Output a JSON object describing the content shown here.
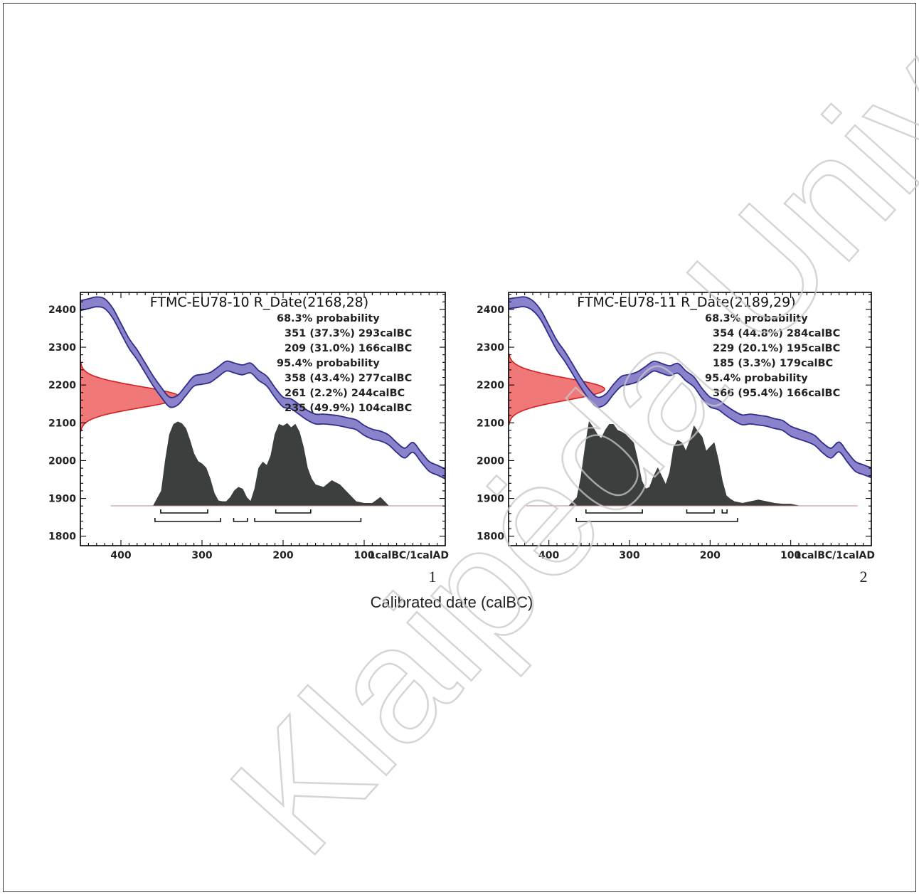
{
  "figure": {
    "xlabel": "Calibrated date (calBC)",
    "watermark": "Klaipėda University",
    "colors": {
      "curve_fill": "#8b82cc",
      "curve_stroke": "#2f2e8a",
      "radiocarbon_fill": "#f07878",
      "radiocarbon_stroke": "#d22020",
      "posterior_fill": "#3b3f3d",
      "axis": "#000000"
    }
  },
  "chart_data": [
    {
      "type": "area",
      "panel_label": "1",
      "title": "FTMC-EU78-10 R_Date(2168,28)",
      "annotations": [
        "68.3% probability",
        "351 (37.3%) 293calBC",
        "209 (31.0%) 166calBC",
        "95.4% probability",
        "358 (43.4%) 277calBC",
        "261 (2.2%) 244calBC",
        "235 (49.9%) 104calBC"
      ],
      "xlim": [
        450,
        0
      ],
      "ylim": [
        1775,
        2445
      ],
      "x_ticks": [
        400,
        300,
        200,
        100
      ],
      "x_end_label": "1calBC/1calAD",
      "y_ticks": [
        1800,
        1900,
        2000,
        2100,
        2200,
        2300,
        2400
      ],
      "radiocarbon": {
        "mean": 2168,
        "sigma": 28
      },
      "calibration_curve": {
        "x": [
          450,
          440,
          430,
          420,
          410,
          400,
          390,
          380,
          370,
          360,
          350,
          340,
          330,
          320,
          310,
          300,
          290,
          280,
          270,
          260,
          250,
          240,
          230,
          220,
          210,
          200,
          190,
          180,
          170,
          160,
          150,
          140,
          130,
          120,
          110,
          100,
          90,
          80,
          70,
          60,
          50,
          40,
          30,
          20,
          10,
          0
        ],
        "y": [
          2410,
          2415,
          2420,
          2415,
          2390,
          2350,
          2310,
          2280,
          2245,
          2210,
          2180,
          2155,
          2160,
          2185,
          2210,
          2215,
          2220,
          2235,
          2250,
          2245,
          2240,
          2245,
          2225,
          2210,
          2180,
          2155,
          2150,
          2135,
          2120,
          2110,
          2110,
          2108,
          2105,
          2100,
          2095,
          2080,
          2070,
          2065,
          2055,
          2035,
          2020,
          2035,
          2010,
          1985,
          1975,
          1965
        ]
      },
      "posterior": {
        "x": [
          360,
          350,
          345,
          340,
          335,
          330,
          325,
          320,
          315,
          310,
          305,
          300,
          295,
          290,
          285,
          280,
          275,
          270,
          265,
          260,
          255,
          250,
          245,
          240,
          235,
          230,
          225,
          220,
          215,
          210,
          205,
          200,
          195,
          190,
          185,
          180,
          175,
          170,
          165,
          160,
          150,
          140,
          130,
          120,
          110,
          100,
          90,
          80,
          70,
          60,
          50
        ],
        "y": [
          0,
          0.18,
          0.55,
          0.85,
          0.97,
          1.0,
          0.98,
          0.92,
          0.78,
          0.62,
          0.53,
          0.5,
          0.45,
          0.32,
          0.15,
          0.06,
          0.05,
          0.05,
          0.1,
          0.18,
          0.22,
          0.2,
          0.1,
          0.05,
          0.2,
          0.45,
          0.52,
          0.48,
          0.6,
          0.85,
          0.97,
          0.95,
          0.98,
          0.93,
          0.97,
          0.88,
          0.7,
          0.45,
          0.32,
          0.25,
          0.22,
          0.3,
          0.25,
          0.15,
          0.05,
          0.03,
          0.03,
          0.1,
          0.0,
          0.0,
          0
        ]
      },
      "ranges_68": [
        [
          351,
          293
        ],
        [
          209,
          166
        ]
      ],
      "ranges_95": [
        [
          358,
          277
        ],
        [
          261,
          244
        ],
        [
          235,
          104
        ]
      ]
    },
    {
      "type": "area",
      "panel_label": "2",
      "title": "FTMC-EU78-11 R_Date(2189,29)",
      "annotations": [
        "68.3% probability",
        "354 (44.8%) 284calBC",
        "229 (20.1%) 195calBC",
        "185 (3.3%) 179calBC",
        "95.4% probability",
        "366 (95.4%) 166calBC"
      ],
      "xlim": [
        450,
        0
      ],
      "ylim": [
        1775,
        2445
      ],
      "x_ticks": [
        400,
        300,
        200,
        100
      ],
      "x_end_label": "1calBC/1calAD",
      "y_ticks": [
        1800,
        1900,
        2000,
        2100,
        2200,
        2300,
        2400
      ],
      "radiocarbon": {
        "mean": 2189,
        "sigma": 29
      },
      "calibration_curve": {
        "x": [
          450,
          440,
          430,
          420,
          410,
          400,
          390,
          380,
          370,
          360,
          350,
          340,
          330,
          320,
          310,
          300,
          290,
          280,
          270,
          260,
          250,
          240,
          230,
          220,
          210,
          200,
          190,
          180,
          170,
          160,
          150,
          140,
          130,
          120,
          110,
          100,
          90,
          80,
          70,
          60,
          50,
          40,
          30,
          20,
          10,
          0
        ],
        "y": [
          2415,
          2418,
          2420,
          2410,
          2385,
          2345,
          2305,
          2275,
          2240,
          2205,
          2175,
          2155,
          2162,
          2188,
          2210,
          2215,
          2222,
          2236,
          2250,
          2244,
          2238,
          2244,
          2224,
          2208,
          2178,
          2155,
          2148,
          2132,
          2118,
          2108,
          2110,
          2107,
          2104,
          2098,
          2093,
          2078,
          2070,
          2063,
          2053,
          2033,
          2020,
          2036,
          2010,
          1985,
          1976,
          1968
        ]
      },
      "posterior": {
        "x": [
          375,
          365,
          360,
          355,
          350,
          345,
          340,
          335,
          330,
          325,
          320,
          315,
          310,
          305,
          300,
          295,
          290,
          285,
          280,
          275,
          270,
          265,
          260,
          255,
          250,
          245,
          240,
          235,
          230,
          225,
          220,
          215,
          210,
          205,
          200,
          195,
          190,
          185,
          180,
          175,
          170,
          165,
          160,
          150,
          140,
          130,
          120,
          110,
          100,
          90,
          80,
          70
        ],
        "y": [
          0,
          0.1,
          0.35,
          0.7,
          1.0,
          0.93,
          0.85,
          0.8,
          0.9,
          0.97,
          0.97,
          0.9,
          0.88,
          0.85,
          0.8,
          0.75,
          0.55,
          0.3,
          0.2,
          0.22,
          0.35,
          0.45,
          0.35,
          0.25,
          0.4,
          0.7,
          0.78,
          0.75,
          0.65,
          0.78,
          0.95,
          0.88,
          0.82,
          0.65,
          0.7,
          0.75,
          0.55,
          0.3,
          0.12,
          0.08,
          0.05,
          0.04,
          0.03,
          0.05,
          0.07,
          0.05,
          0.03,
          0.02,
          0.02,
          0.0,
          0.0,
          0
        ]
      },
      "ranges_68": [
        [
          354,
          284
        ],
        [
          229,
          195
        ],
        [
          185,
          179
        ]
      ],
      "ranges_95": [
        [
          366,
          166
        ]
      ]
    }
  ]
}
